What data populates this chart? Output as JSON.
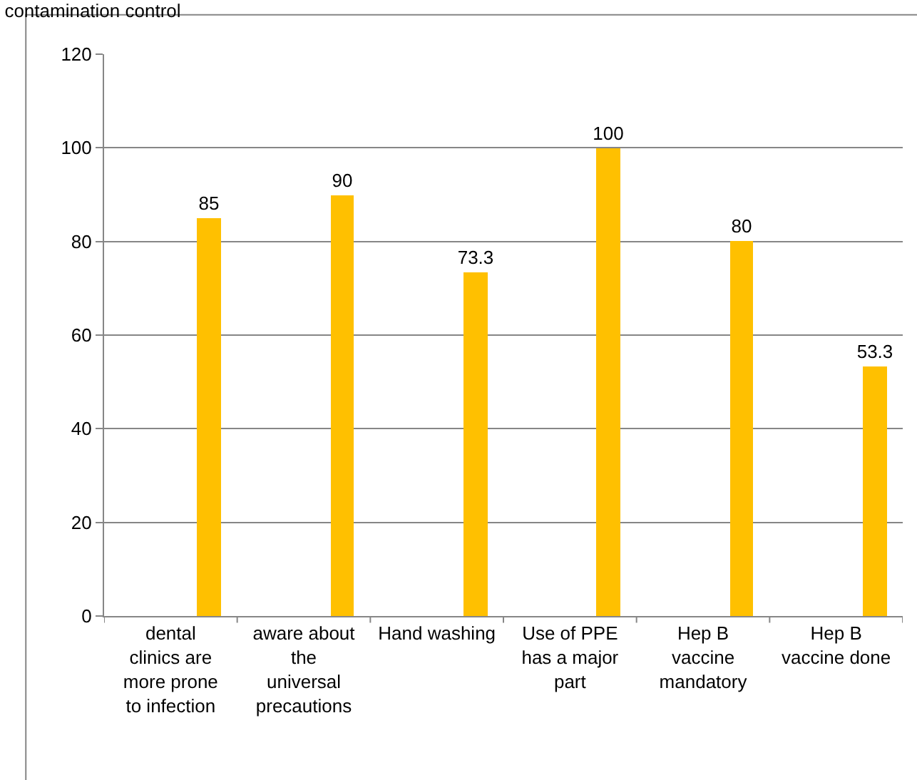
{
  "chart_data": {
    "type": "bar",
    "title": "contamination control",
    "categories": [
      "dental clinics are more prone to infection",
      "aware about the universal precautions",
      "Hand washing",
      "Use of PPE has a major part",
      "Hep B vaccine mandatory",
      "Hep B vaccine done"
    ],
    "values": [
      85,
      90,
      73.3,
      100,
      80,
      53.3
    ],
    "color": "#ffc000",
    "data_labels": true,
    "ylim": [
      0,
      120
    ],
    "yticks": [
      0,
      20,
      40,
      60,
      80,
      100,
      120
    ],
    "grid": "y"
  }
}
